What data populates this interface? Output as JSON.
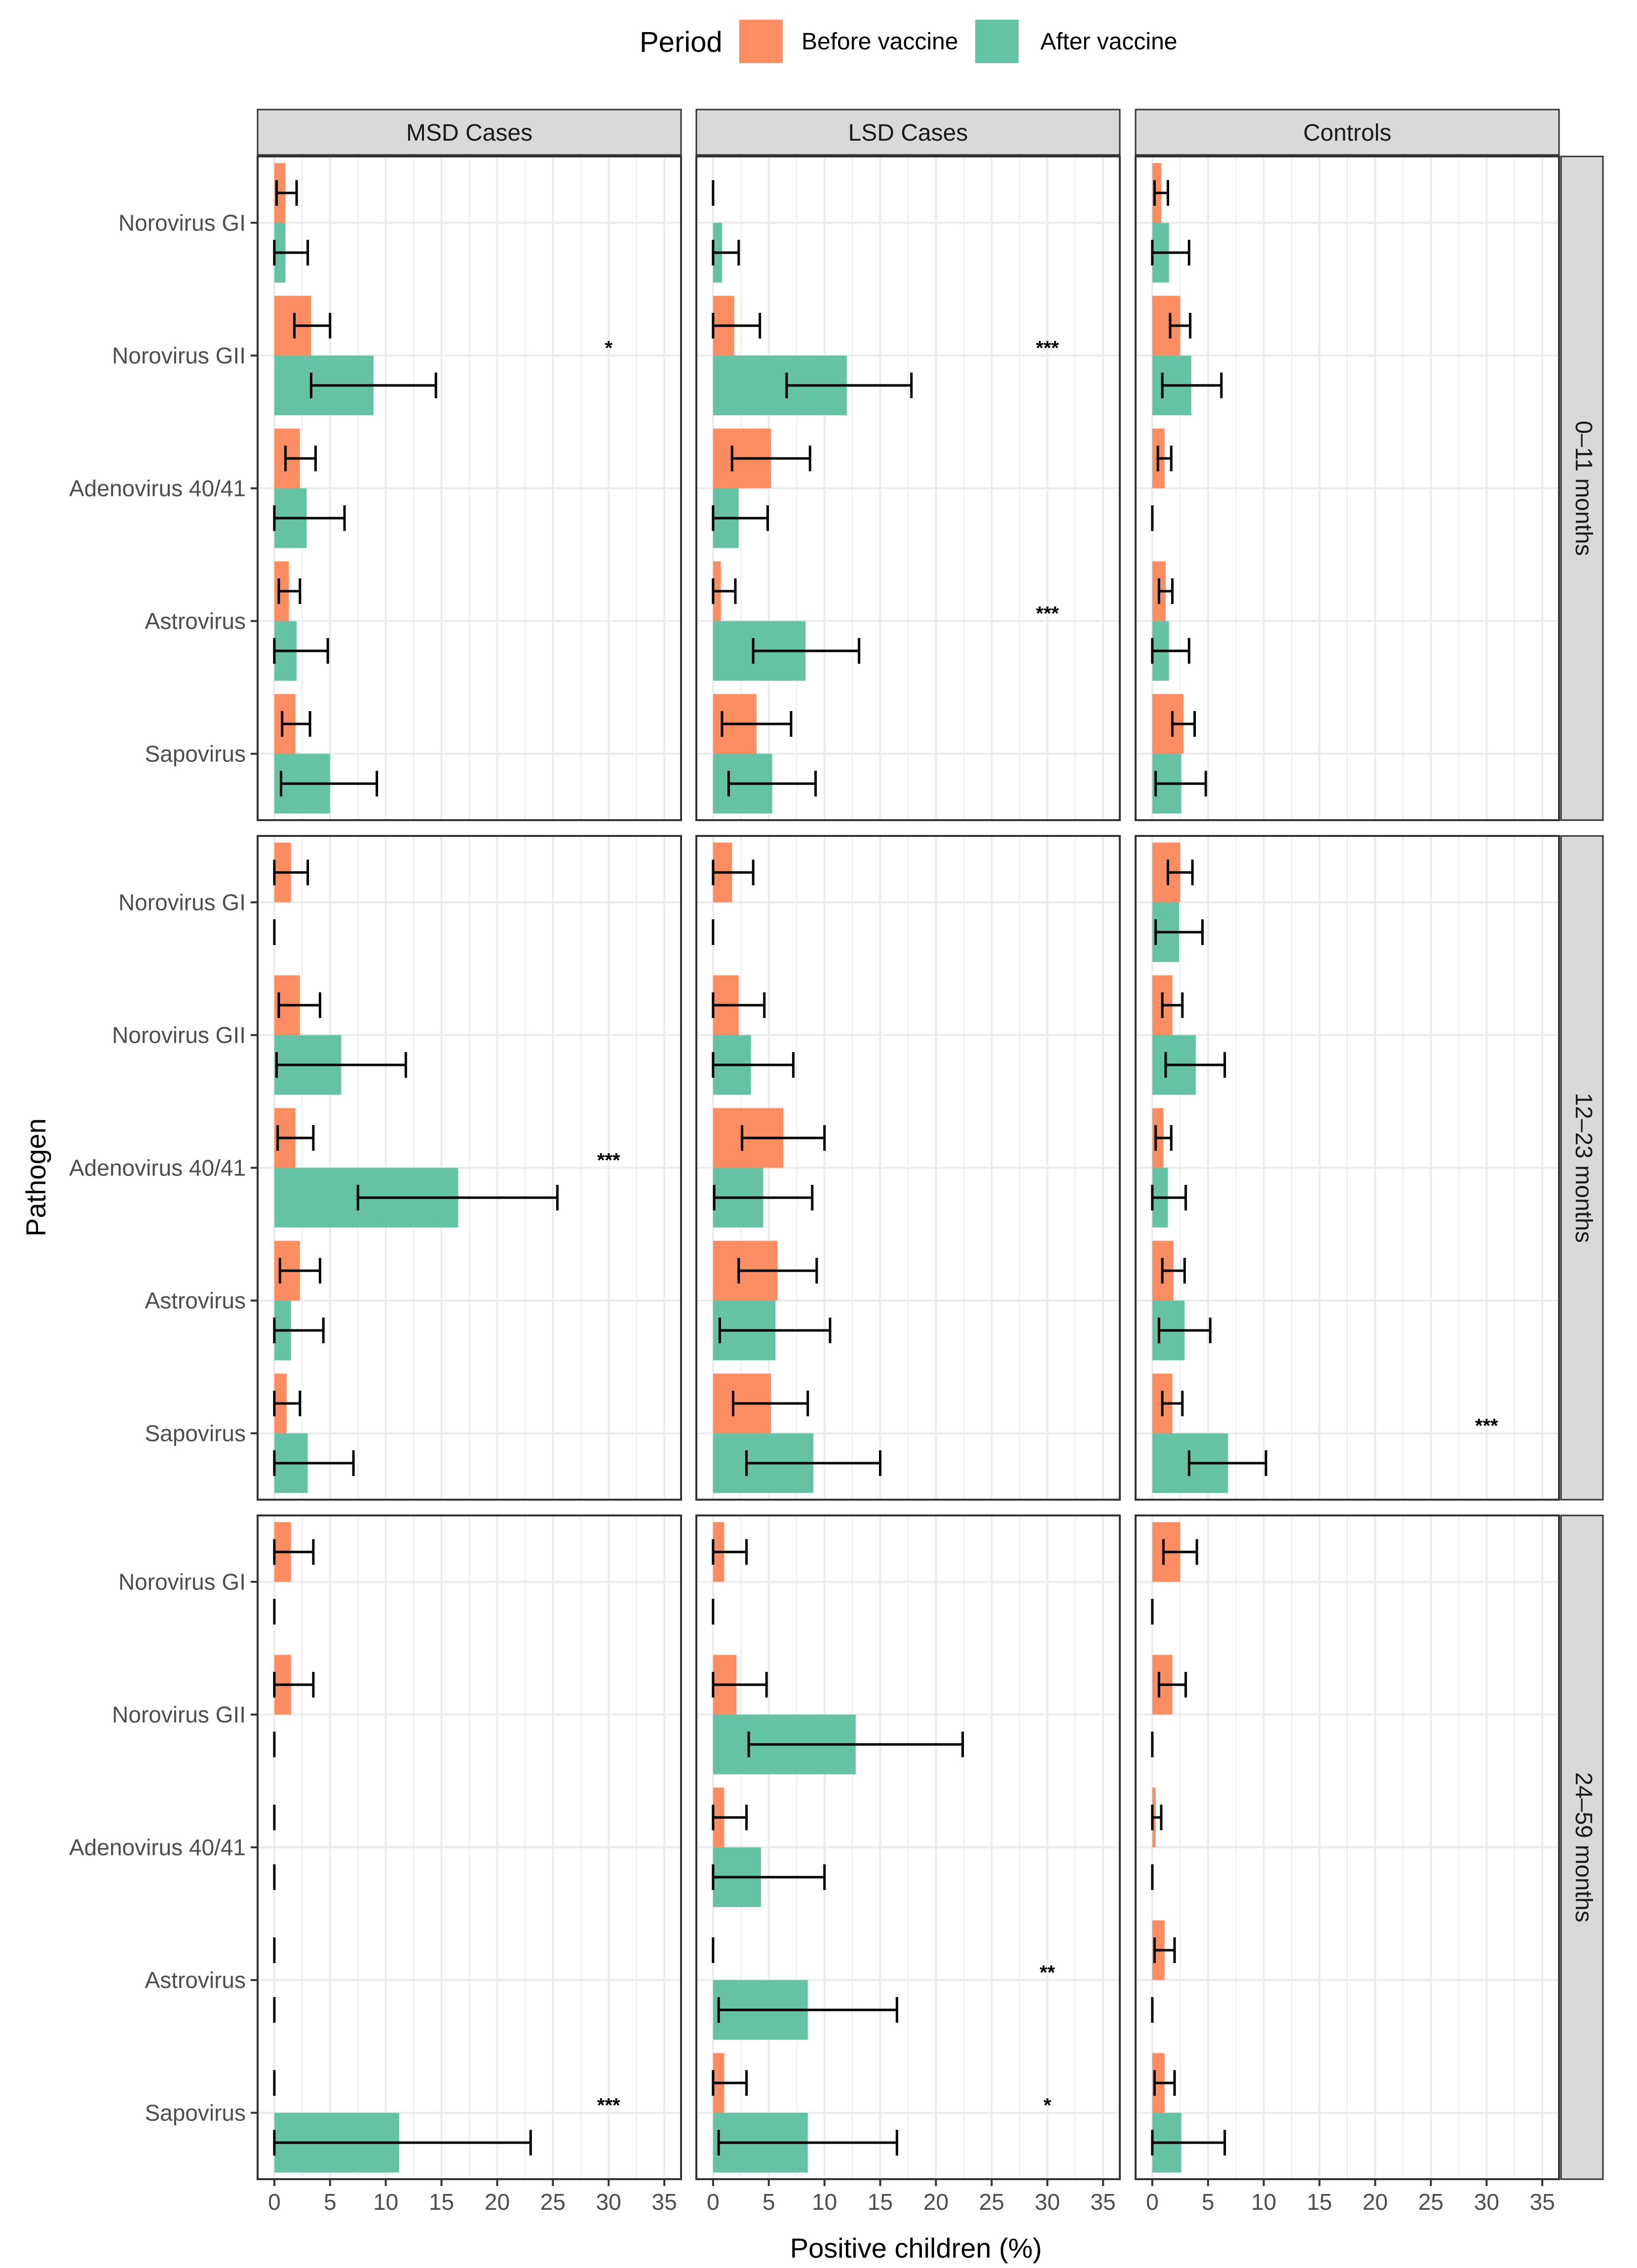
{
  "chart_data": {
    "type": "bar",
    "orientation": "horizontal",
    "layout": "facet_grid",
    "legend": {
      "title": "Period",
      "position": "top",
      "entries": [
        {
          "name": "Before vaccine",
          "color": "#FC8D62"
        },
        {
          "name": "After vaccine",
          "color": "#66C2A5"
        }
      ]
    },
    "xlabel": "Positive children (%)",
    "ylabel": "Pathogen",
    "xlim": [
      -1.5,
      36.5
    ],
    "xticks": [
      0,
      5,
      10,
      15,
      20,
      25,
      30,
      35
    ],
    "grid": true,
    "columns": [
      "MSD Cases",
      "LSD Cases",
      "Controls"
    ],
    "rows": [
      "0–11 months",
      "12–23 months",
      "24–59 months"
    ],
    "pathogens": [
      "Norovirus GI",
      "Norovirus GII",
      "Adenovirus 40/41",
      "Astrovirus",
      "Sapovirus"
    ],
    "panels": [
      {
        "row": 0,
        "col": 0,
        "data": [
          {
            "pathogen": "Norovirus GI",
            "before": [
              1.0,
              0.2,
              2.0
            ],
            "after": [
              1.0,
              0.0,
              3.0
            ],
            "sig": ""
          },
          {
            "pathogen": "Norovirus GII",
            "before": [
              3.3,
              1.8,
              5.0
            ],
            "after": [
              8.9,
              3.3,
              14.5
            ],
            "sig": "*"
          },
          {
            "pathogen": "Adenovirus 40/41",
            "before": [
              2.3,
              1.0,
              3.7
            ],
            "after": [
              2.9,
              0.0,
              6.3
            ],
            "sig": ""
          },
          {
            "pathogen": "Astrovirus",
            "before": [
              1.3,
              0.4,
              2.3
            ],
            "after": [
              2.0,
              0.0,
              4.8
            ],
            "sig": ""
          },
          {
            "pathogen": "Sapovirus",
            "before": [
              1.9,
              0.7,
              3.2
            ],
            "after": [
              5.0,
              0.6,
              9.2
            ],
            "sig": ""
          }
        ]
      },
      {
        "row": 0,
        "col": 1,
        "data": [
          {
            "pathogen": "Norovirus GI",
            "before": [
              0,
              0,
              0
            ],
            "after": [
              0.8,
              0.0,
              2.3
            ],
            "sig": ""
          },
          {
            "pathogen": "Norovirus GII",
            "before": [
              1.9,
              0.0,
              4.2
            ],
            "after": [
              12.0,
              6.6,
              17.8
            ],
            "sig": "***"
          },
          {
            "pathogen": "Adenovirus 40/41",
            "before": [
              5.2,
              1.7,
              8.7
            ],
            "after": [
              2.3,
              0.0,
              4.9
            ],
            "sig": ""
          },
          {
            "pathogen": "Astrovirus",
            "before": [
              0.7,
              0.0,
              2.0
            ],
            "after": [
              8.3,
              3.6,
              13.1
            ],
            "sig": "***"
          },
          {
            "pathogen": "Sapovirus",
            "before": [
              3.9,
              0.8,
              7.0
            ],
            "after": [
              5.3,
              1.4,
              9.2
            ],
            "sig": ""
          }
        ]
      },
      {
        "row": 0,
        "col": 2,
        "data": [
          {
            "pathogen": "Norovirus GI",
            "before": [
              0.8,
              0.2,
              1.4
            ],
            "after": [
              1.5,
              0.0,
              3.3
            ],
            "sig": ""
          },
          {
            "pathogen": "Norovirus GII",
            "before": [
              2.5,
              1.6,
              3.4
            ],
            "after": [
              3.5,
              0.9,
              6.2
            ],
            "sig": ""
          },
          {
            "pathogen": "Adenovirus 40/41",
            "before": [
              1.1,
              0.5,
              1.7
            ],
            "after": [
              0,
              0,
              0
            ],
            "sig": ""
          },
          {
            "pathogen": "Astrovirus",
            "before": [
              1.2,
              0.6,
              1.8
            ],
            "after": [
              1.5,
              0.0,
              3.3
            ],
            "sig": ""
          },
          {
            "pathogen": "Sapovirus",
            "before": [
              2.8,
              1.8,
              3.8
            ],
            "after": [
              2.6,
              0.3,
              4.8
            ],
            "sig": ""
          }
        ]
      },
      {
        "row": 1,
        "col": 0,
        "data": [
          {
            "pathogen": "Norovirus GI",
            "before": [
              1.5,
              0.0,
              3.0
            ],
            "after": [
              0,
              0,
              0
            ],
            "sig": ""
          },
          {
            "pathogen": "Norovirus GII",
            "before": [
              2.3,
              0.4,
              4.1
            ],
            "after": [
              6.0,
              0.2,
              11.8
            ],
            "sig": ""
          },
          {
            "pathogen": "Adenovirus 40/41",
            "before": [
              1.9,
              0.3,
              3.5
            ],
            "after": [
              16.5,
              7.5,
              25.4
            ],
            "sig": "***"
          },
          {
            "pathogen": "Astrovirus",
            "before": [
              2.3,
              0.5,
              4.1
            ],
            "after": [
              1.5,
              0.0,
              4.4
            ],
            "sig": ""
          },
          {
            "pathogen": "Sapovirus",
            "before": [
              1.1,
              0.0,
              2.3
            ],
            "after": [
              3.0,
              0.0,
              7.1
            ],
            "sig": ""
          }
        ]
      },
      {
        "row": 1,
        "col": 1,
        "data": [
          {
            "pathogen": "Norovirus GI",
            "before": [
              1.7,
              0.0,
              3.6
            ],
            "after": [
              0,
              0,
              0
            ],
            "sig": ""
          },
          {
            "pathogen": "Norovirus GII",
            "before": [
              2.3,
              0.0,
              4.6
            ],
            "after": [
              3.4,
              0.0,
              7.2
            ],
            "sig": ""
          },
          {
            "pathogen": "Adenovirus 40/41",
            "before": [
              6.3,
              2.6,
              10.0
            ],
            "after": [
              4.5,
              0.1,
              8.9
            ],
            "sig": ""
          },
          {
            "pathogen": "Astrovirus",
            "before": [
              5.8,
              2.3,
              9.3
            ],
            "after": [
              5.6,
              0.6,
              10.5
            ],
            "sig": ""
          },
          {
            "pathogen": "Sapovirus",
            "before": [
              5.2,
              1.8,
              8.5
            ],
            "after": [
              9.0,
              3.0,
              15.0
            ],
            "sig": ""
          }
        ]
      },
      {
        "row": 1,
        "col": 2,
        "data": [
          {
            "pathogen": "Norovirus GI",
            "before": [
              2.5,
              1.4,
              3.6
            ],
            "after": [
              2.4,
              0.3,
              4.5
            ],
            "sig": ""
          },
          {
            "pathogen": "Norovirus GII",
            "before": [
              1.8,
              0.9,
              2.7
            ],
            "after": [
              3.9,
              1.2,
              6.5
            ],
            "sig": ""
          },
          {
            "pathogen": "Adenovirus 40/41",
            "before": [
              1.0,
              0.3,
              1.7
            ],
            "after": [
              1.4,
              0.0,
              3.0
            ],
            "sig": ""
          },
          {
            "pathogen": "Astrovirus",
            "before": [
              1.9,
              0.9,
              2.9
            ],
            "after": [
              2.9,
              0.6,
              5.2
            ],
            "sig": ""
          },
          {
            "pathogen": "Sapovirus",
            "before": [
              1.8,
              0.9,
              2.7
            ],
            "after": [
              6.8,
              3.3,
              10.2
            ],
            "sig": "***"
          }
        ]
      },
      {
        "row": 2,
        "col": 0,
        "data": [
          {
            "pathogen": "Norovirus GI",
            "before": [
              1.5,
              0.0,
              3.5
            ],
            "after": [
              0,
              0,
              0
            ],
            "sig": ""
          },
          {
            "pathogen": "Norovirus GII",
            "before": [
              1.5,
              0.0,
              3.5
            ],
            "after": [
              0,
              0,
              0
            ],
            "sig": ""
          },
          {
            "pathogen": "Adenovirus 40/41",
            "before": [
              0,
              0,
              0
            ],
            "after": [
              0,
              0,
              0
            ],
            "sig": ""
          },
          {
            "pathogen": "Astrovirus",
            "before": [
              0,
              0,
              0
            ],
            "after": [
              0,
              0,
              0
            ],
            "sig": ""
          },
          {
            "pathogen": "Sapovirus",
            "before": [
              0,
              0,
              0
            ],
            "after": [
              11.2,
              0.0,
              23.0
            ],
            "sig": "***"
          }
        ]
      },
      {
        "row": 2,
        "col": 1,
        "data": [
          {
            "pathogen": "Norovirus GI",
            "before": [
              1.0,
              0.0,
              3.0
            ],
            "after": [
              0,
              0,
              0
            ],
            "sig": ""
          },
          {
            "pathogen": "Norovirus GII",
            "before": [
              2.1,
              0.0,
              4.8
            ],
            "after": [
              12.8,
              3.2,
              22.4
            ],
            "sig": ""
          },
          {
            "pathogen": "Adenovirus 40/41",
            "before": [
              1.0,
              0.0,
              3.0
            ],
            "after": [
              4.3,
              0.0,
              10.0
            ],
            "sig": ""
          },
          {
            "pathogen": "Astrovirus",
            "before": [
              0,
              0,
              0
            ],
            "after": [
              8.5,
              0.5,
              16.5
            ],
            "sig": "**"
          },
          {
            "pathogen": "Sapovirus",
            "before": [
              1.0,
              0.0,
              3.0
            ],
            "after": [
              8.5,
              0.5,
              16.5
            ],
            "sig": "*"
          }
        ]
      },
      {
        "row": 2,
        "col": 2,
        "data": [
          {
            "pathogen": "Norovirus GI",
            "before": [
              2.5,
              1.0,
              4.0
            ],
            "after": [
              0,
              0,
              0
            ],
            "sig": ""
          },
          {
            "pathogen": "Norovirus GII",
            "before": [
              1.8,
              0.6,
              3.0
            ],
            "after": [
              0,
              0,
              0
            ],
            "sig": ""
          },
          {
            "pathogen": "Adenovirus 40/41",
            "before": [
              0.3,
              0.0,
              0.8
            ],
            "after": [
              0,
              0,
              0
            ],
            "sig": ""
          },
          {
            "pathogen": "Astrovirus",
            "before": [
              1.1,
              0.2,
              2.0
            ],
            "after": [
              0,
              0,
              0
            ],
            "sig": ""
          },
          {
            "pathogen": "Sapovirus",
            "before": [
              1.1,
              0.2,
              2.0
            ],
            "after": [
              2.6,
              0.0,
              6.5
            ],
            "sig": ""
          }
        ]
      }
    ]
  }
}
